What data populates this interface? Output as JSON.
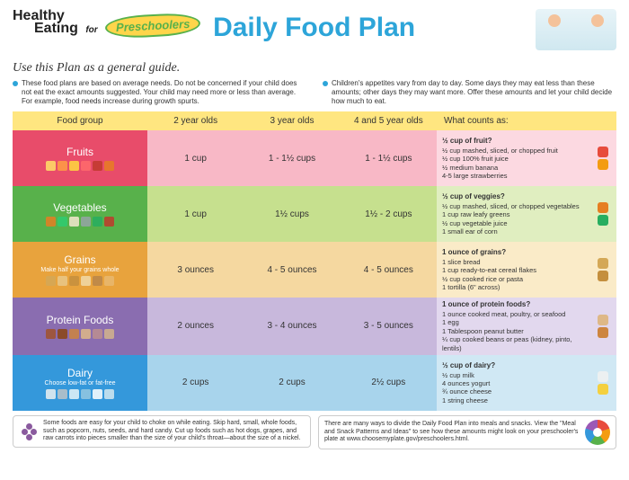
{
  "header": {
    "healthy": "Healthy",
    "eating": "Eating",
    "for": "for",
    "badge": "Preschoolers",
    "title": "Daily Food Plan"
  },
  "subtitle": "Use this Plan as a general guide.",
  "bullets": [
    "These food plans are based on average needs. Do not be concerned if your child does not eat the exact amounts suggested. Your child may need more or less than average. For example, food needs increase during growth spurts.",
    "Children's appetites vary from day to day. Some days they may eat less than these amounts; other days they may want more. Offer these amounts and let your child decide how much to eat."
  ],
  "columns": [
    "Food group",
    "2 year olds",
    "3 year olds",
    "4 and 5 year olds",
    "What counts as:"
  ],
  "rows": [
    {
      "name": "Fruits",
      "sub": "",
      "header_bg": "#e84c6a",
      "cells_bg": "#f8b8c6",
      "counts_bg": "#fcd9e1",
      "icon_colors": [
        "#ffe066",
        "#ff9f43",
        "#ffd93d",
        "#ff6b6b",
        "#c0392b",
        "#e67e22"
      ],
      "amounts": [
        "1 cup",
        "1 - 1½ cups",
        "1 - 1½ cups"
      ],
      "counts_title": "½ cup of fruit?",
      "counts": [
        "½ cup mashed, sliced, or chopped fruit",
        "½ cup 100% fruit juice",
        "½ medium banana",
        "4-5 large strawberries"
      ],
      "side_colors": [
        "#e74c3c",
        "#f39c12"
      ]
    },
    {
      "name": "Vegetables",
      "sub": "",
      "header_bg": "#58b14b",
      "cells_bg": "#c6e08e",
      "counts_bg": "#e0eec0",
      "icon_colors": [
        "#e67e22",
        "#2ecc71",
        "#f4e8d0",
        "#95a5a6",
        "#27ae60",
        "#c0392b"
      ],
      "amounts": [
        "1 cup",
        "1½ cups",
        "1½ - 2 cups"
      ],
      "counts_title": "½ cup of veggies?",
      "counts": [
        "½ cup mashed, sliced, or chopped vegetables",
        "1 cup raw leafy greens",
        "½ cup vegetable juice",
        "1 small ear of corn"
      ],
      "side_colors": [
        "#e67e22",
        "#27ae60"
      ]
    },
    {
      "name": "Grains",
      "sub": "Make half your grains whole",
      "header_bg": "#e8a33d",
      "cells_bg": "#f5d8a0",
      "counts_bg": "#faebc8",
      "icon_colors": [
        "#d4a857",
        "#e8c88a",
        "#c48f3e",
        "#f0d9a8",
        "#b8864a",
        "#e8b870"
      ],
      "amounts": [
        "3 ounces",
        "4 - 5 ounces",
        "4 - 5 ounces"
      ],
      "counts_title": "1 ounce of grains?",
      "counts": [
        "1 slice bread",
        "1 cup ready-to-eat cereal flakes",
        "½ cup cooked rice or pasta",
        "1 tortilla (6\" across)"
      ],
      "side_colors": [
        "#d4a857",
        "#c48f3e"
      ]
    },
    {
      "name": "Protein Foods",
      "sub": "",
      "header_bg": "#8a6db0",
      "cells_bg": "#c8b8dc",
      "counts_bg": "#e2d8ee",
      "icon_colors": [
        "#a0522d",
        "#8b4513",
        "#cd853f",
        "#deb887",
        "#bc8f8f",
        "#d2b48c"
      ],
      "amounts": [
        "2 ounces",
        "3 - 4 ounces",
        "3 - 5 ounces"
      ],
      "counts_title": "1 ounce of protein foods?",
      "counts": [
        "1 ounce cooked meat, poultry, or seafood",
        "1 egg",
        "1 Tablespoon peanut butter",
        "¼ cup cooked beans or peas (kidney, pinto, lentils)"
      ],
      "side_colors": [
        "#deb887",
        "#cd853f"
      ]
    },
    {
      "name": "Dairy",
      "sub": "Choose low-fat or fat-free",
      "header_bg": "#3498db",
      "cells_bg": "#a8d4ec",
      "counts_bg": "#d0e8f4",
      "icon_colors": [
        "#ecf0f1",
        "#bdc3c7",
        "#e8f4f8",
        "#95c8e0",
        "#ffffff",
        "#d4e8f0"
      ],
      "amounts": [
        "2 cups",
        "2 cups",
        "2½ cups"
      ],
      "counts_title": "½ cup of dairy?",
      "counts": [
        "½ cup milk",
        "4 ounces yogurt",
        "¾ ounce cheese",
        "1 string cheese"
      ],
      "side_colors": [
        "#ecf0f1",
        "#f4d03f"
      ]
    }
  ],
  "footer": [
    "Some foods are easy for your child to choke on while eating. Skip hard, small, whole foods, such as popcorn, nuts, seeds, and hard candy. Cut up foods such as hot dogs, grapes, and raw carrots into pieces smaller than the size of your child's throat—about the size of a nickel.",
    "There are many ways to divide the Daily Food Plan into meals and snacks. View the \"Meal and Snack Patterns and Ideas\" to see how these amounts might look on your preschooler's plate at www.choosemyplate.gov/preschoolers.html."
  ]
}
